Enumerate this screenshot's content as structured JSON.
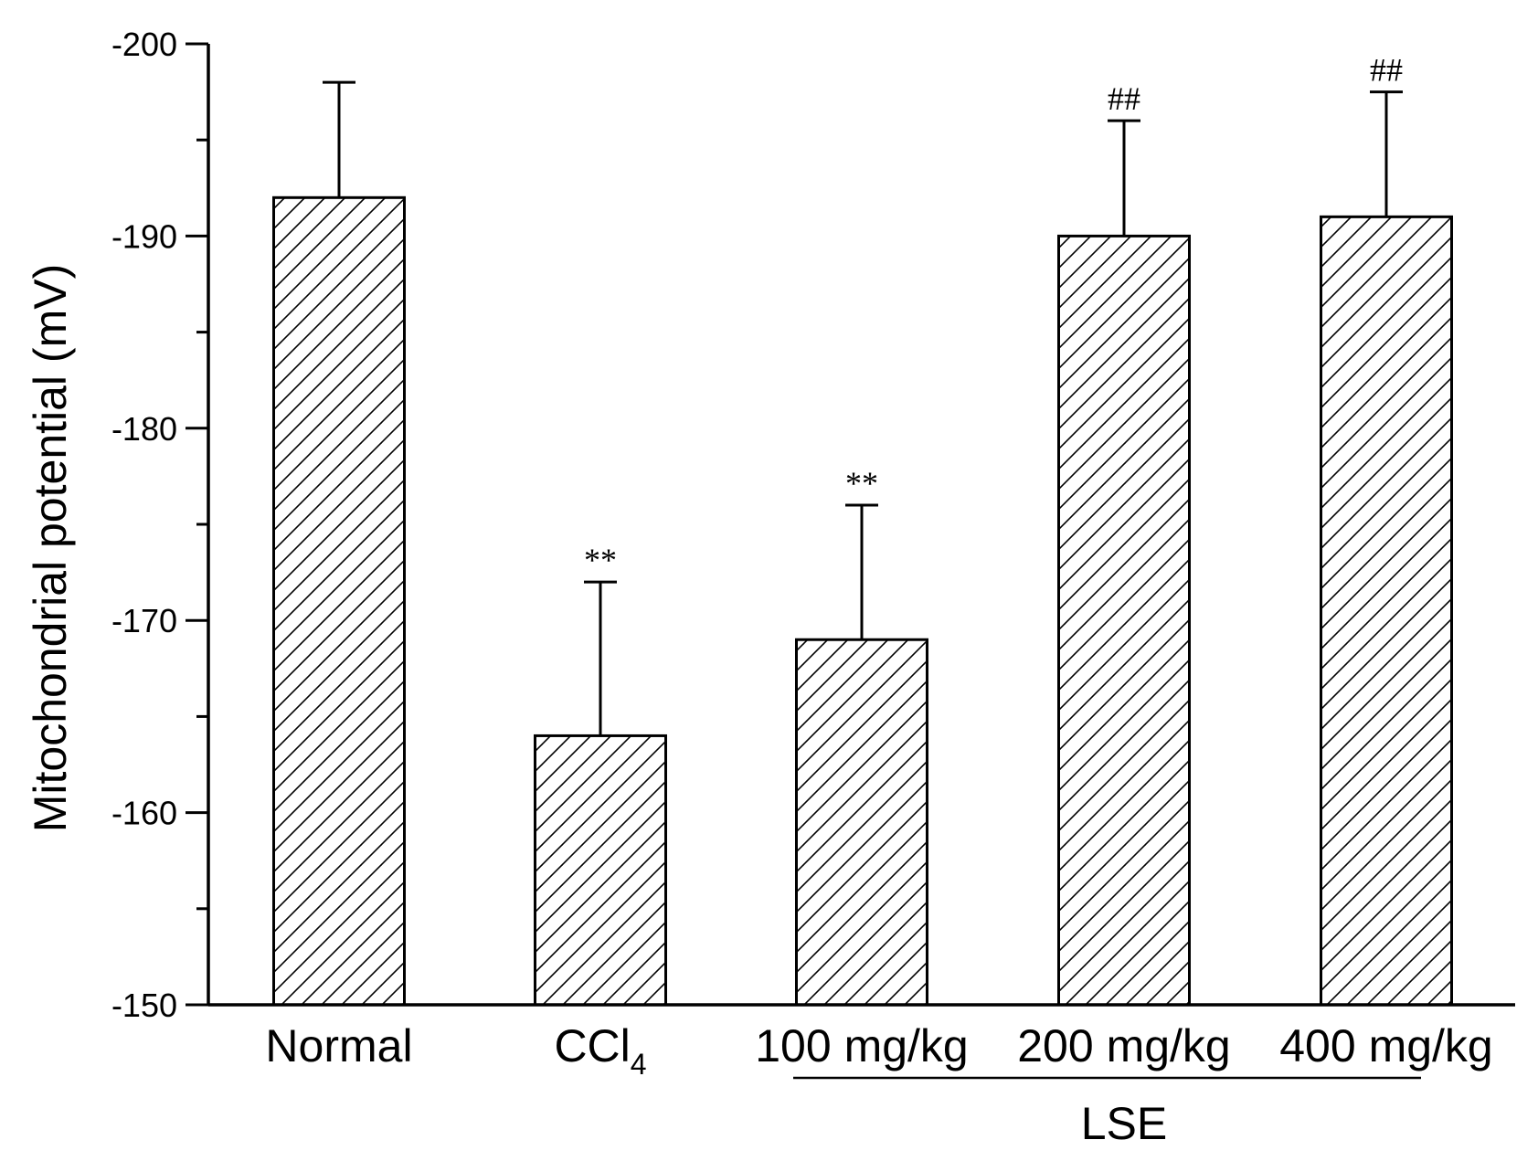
{
  "chart_data": {
    "type": "bar",
    "title": "",
    "xlabel": "",
    "ylabel": "Mitochondrial potential (mV)",
    "ylim": [
      -150,
      -200
    ],
    "yticks": [
      -150,
      -160,
      -170,
      -180,
      -190,
      -200
    ],
    "y_minor_step": 5,
    "grid": false,
    "categories": [
      "Normal",
      "CCl4",
      "100 mg/kg",
      "200 mg/kg",
      "400 mg/kg"
    ],
    "category_display": [
      {
        "main": "Normal",
        "sub": ""
      },
      {
        "main": "CCl",
        "sub": "4"
      },
      {
        "main": "100 mg/kg",
        "sub": ""
      },
      {
        "main": "200 mg/kg",
        "sub": ""
      },
      {
        "main": "400 mg/kg",
        "sub": ""
      }
    ],
    "values": [
      -192,
      -164,
      -169,
      -190,
      -191
    ],
    "errors": [
      6,
      8,
      7,
      6,
      6.5
    ],
    "annotations": [
      "",
      "**",
      "**",
      "##",
      "##"
    ],
    "group_label": {
      "text": "LSE",
      "categories": [
        "100 mg/kg",
        "200 mg/kg",
        "400 mg/kg"
      ]
    },
    "bar_fill": "hatched",
    "bar_color": "#000000",
    "background": "#ffffff"
  }
}
